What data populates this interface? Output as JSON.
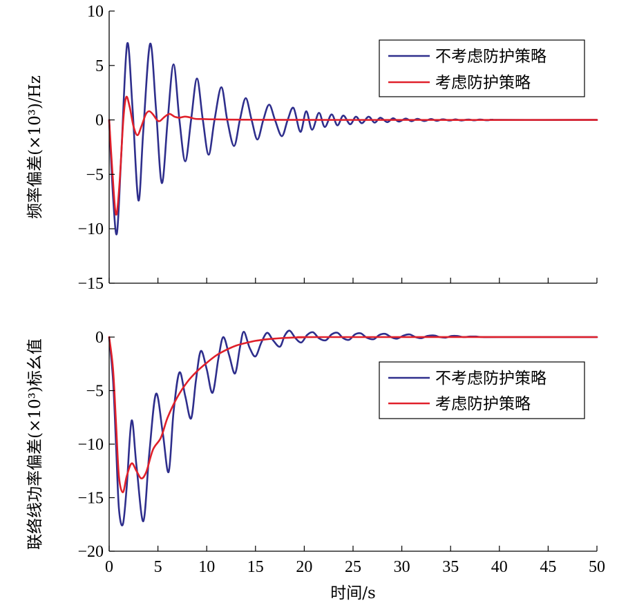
{
  "chart_data": [
    {
      "type": "line",
      "ylabel": "频率偏差(×10³)/Hz",
      "xlim": [
        0,
        50
      ],
      "ylim": [
        -15,
        10
      ],
      "x_ticks": [
        0,
        5,
        10,
        15,
        20,
        25,
        30,
        35,
        40,
        45,
        50
      ],
      "y_ticks": [
        -15,
        -10,
        -5,
        0,
        5,
        10
      ],
      "y_tick_labels": [
        "−15",
        "−10",
        "−5",
        "0",
        "5",
        "10"
      ],
      "legend_position": "top-right",
      "series": [
        {
          "name": "不考虑防护策略",
          "color": "#2e2e8c",
          "points": [
            [
              0,
              0
            ],
            [
              0.4,
              -7
            ],
            [
              0.8,
              -10.4
            ],
            [
              1.25,
              -3
            ],
            [
              1.85,
              7
            ],
            [
              2.4,
              1
            ],
            [
              3.0,
              -7.4
            ],
            [
              3.5,
              -1
            ],
            [
              4.2,
              7
            ],
            [
              4.8,
              1
            ],
            [
              5.4,
              -5.8
            ],
            [
              6.0,
              0
            ],
            [
              6.6,
              5.1
            ],
            [
              7.2,
              0
            ],
            [
              7.8,
              -3.8
            ],
            [
              8.4,
              0
            ],
            [
              9.0,
              3.8
            ],
            [
              9.6,
              0
            ],
            [
              10.2,
              -3.2
            ],
            [
              10.8,
              0
            ],
            [
              11.5,
              3.0
            ],
            [
              12.1,
              0
            ],
            [
              12.8,
              -2.4
            ],
            [
              13.4,
              0
            ],
            [
              14.0,
              2.0
            ],
            [
              14.6,
              0
            ],
            [
              15.2,
              -1.8
            ],
            [
              15.8,
              0
            ],
            [
              16.4,
              1.4
            ],
            [
              17.0,
              0
            ],
            [
              17.7,
              -1.5
            ],
            [
              18.3,
              0
            ],
            [
              18.9,
              1.1
            ],
            [
              19.6,
              -1.1
            ],
            [
              20.2,
              0.8
            ],
            [
              20.8,
              -0.9
            ],
            [
              21.5,
              0.65
            ],
            [
              22.1,
              -0.65
            ],
            [
              22.8,
              0.5
            ],
            [
              23.4,
              -0.5
            ],
            [
              24.0,
              0.4
            ],
            [
              24.7,
              -0.4
            ],
            [
              25.3,
              0.3
            ],
            [
              25.9,
              -0.3
            ],
            [
              26.6,
              0.3
            ],
            [
              27.2,
              -0.25
            ],
            [
              27.8,
              0.2
            ],
            [
              28.5,
              -0.2
            ],
            [
              29.1,
              0.15
            ],
            [
              29.7,
              -0.15
            ],
            [
              30.4,
              0.12
            ],
            [
              31.0,
              -0.12
            ],
            [
              31.6,
              0.1
            ],
            [
              32.3,
              -0.1
            ],
            [
              33.0,
              0.08
            ],
            [
              33.6,
              -0.08
            ],
            [
              34.2,
              0.06
            ],
            [
              34.9,
              -0.06
            ],
            [
              35.5,
              0.05
            ],
            [
              36.1,
              -0.05
            ],
            [
              36.8,
              0.04
            ],
            [
              37.4,
              -0.04
            ],
            [
              38.0,
              0.03
            ],
            [
              38.7,
              -0.03
            ],
            [
              39.3,
              0.02
            ],
            [
              40.0,
              0
            ],
            [
              50,
              0
            ]
          ]
        },
        {
          "name": "考虑防护策略",
          "color": "#e0202a",
          "points": [
            [
              0,
              0
            ],
            [
              0.35,
              -5
            ],
            [
              0.7,
              -8.7
            ],
            [
              1.05,
              -6
            ],
            [
              1.45,
              0
            ],
            [
              1.75,
              2.1
            ],
            [
              2.1,
              1.2
            ],
            [
              2.5,
              -0.6
            ],
            [
              2.9,
              -1.4
            ],
            [
              3.3,
              -0.6
            ],
            [
              3.75,
              0.5
            ],
            [
              4.1,
              0.8
            ],
            [
              4.5,
              0.5
            ],
            [
              4.9,
              0
            ],
            [
              5.2,
              -0.1
            ],
            [
              5.7,
              0.3
            ],
            [
              6.2,
              0.55
            ],
            [
              6.7,
              0.3
            ],
            [
              7.2,
              0.2
            ],
            [
              7.7,
              0.3
            ],
            [
              8.2,
              0.25
            ],
            [
              8.8,
              0.1
            ],
            [
              9.5,
              0.08
            ],
            [
              11,
              0.05
            ],
            [
              14,
              0.02
            ],
            [
              20,
              0
            ],
            [
              50,
              0
            ]
          ]
        }
      ]
    },
    {
      "type": "line",
      "ylabel": "联络线功率偏差(×10³)标幺值",
      "xlabel": "时间/s",
      "xlim": [
        0,
        50
      ],
      "ylim": [
        -20,
        0
      ],
      "x_ticks": [
        0,
        5,
        10,
        15,
        20,
        25,
        30,
        35,
        40,
        45,
        50
      ],
      "x_tick_labels": [
        "0",
        "5",
        "10",
        "15",
        "20",
        "25",
        "30",
        "35",
        "40",
        "45",
        "50"
      ],
      "y_ticks": [
        -20,
        -15,
        -10,
        -5,
        0
      ],
      "y_tick_labels": [
        "−20",
        "−15",
        "−10",
        "−5",
        "0"
      ],
      "legend_position": "right",
      "series": [
        {
          "name": "不考虑防护策略",
          "color": "#2e2e8c",
          "points": [
            [
              0,
              0
            ],
            [
              0.4,
              -4
            ],
            [
              0.7,
              -10
            ],
            [
              1.0,
              -16
            ],
            [
              1.4,
              -17.5
            ],
            [
              1.8,
              -14
            ],
            [
              2.3,
              -7.8
            ],
            [
              2.8,
              -12
            ],
            [
              3.5,
              -17.2
            ],
            [
              4.1,
              -11
            ],
            [
              4.8,
              -5.3
            ],
            [
              5.5,
              -9
            ],
            [
              6.1,
              -12.6
            ],
            [
              6.6,
              -7
            ],
            [
              7.2,
              -3.3
            ],
            [
              7.8,
              -5.5
            ],
            [
              8.4,
              -7.6
            ],
            [
              8.9,
              -4
            ],
            [
              9.4,
              -1.3
            ],
            [
              10.0,
              -3
            ],
            [
              10.6,
              -5.2
            ],
            [
              11.2,
              -2
            ],
            [
              11.7,
              0
            ],
            [
              12.3,
              -1.7
            ],
            [
              12.9,
              -3.4
            ],
            [
              13.4,
              -1
            ],
            [
              13.8,
              0.5
            ],
            [
              14.4,
              -1
            ],
            [
              15.0,
              -1.8
            ],
            [
              15.6,
              -0.5
            ],
            [
              16.2,
              0.4
            ],
            [
              16.8,
              -0.3
            ],
            [
              17.5,
              -0.9
            ],
            [
              18.0,
              0.15
            ],
            [
              18.5,
              0.6
            ],
            [
              19.1,
              -0.1
            ],
            [
              19.7,
              -0.5
            ],
            [
              20.3,
              0.2
            ],
            [
              20.9,
              0.45
            ],
            [
              21.5,
              -0.1
            ],
            [
              22.2,
              -0.3
            ],
            [
              22.8,
              0.25
            ],
            [
              23.4,
              0.4
            ],
            [
              24.0,
              -0.1
            ],
            [
              24.6,
              -0.25
            ],
            [
              25.2,
              0.25
            ],
            [
              25.8,
              0.35
            ],
            [
              26.4,
              -0.05
            ],
            [
              27.1,
              -0.2
            ],
            [
              27.7,
              0.2
            ],
            [
              28.3,
              0.3
            ],
            [
              28.9,
              0
            ],
            [
              29.5,
              -0.15
            ],
            [
              30.2,
              0.15
            ],
            [
              30.8,
              0.25
            ],
            [
              31.4,
              0
            ],
            [
              32.0,
              -0.1
            ],
            [
              32.6,
              0.1
            ],
            [
              33.3,
              0.15
            ],
            [
              33.9,
              0
            ],
            [
              34.5,
              -0.05
            ],
            [
              35.1,
              0.1
            ],
            [
              35.7,
              0.1
            ],
            [
              36.3,
              0
            ],
            [
              37.0,
              0.05
            ],
            [
              37.6,
              0.05
            ],
            [
              38.3,
              0
            ],
            [
              40,
              0
            ],
            [
              50,
              0
            ]
          ]
        },
        {
          "name": "考虑防护策略",
          "color": "#e0202a",
          "points": [
            [
              0,
              0
            ],
            [
              0.4,
              -3
            ],
            [
              0.7,
              -8
            ],
            [
              1.0,
              -13
            ],
            [
              1.4,
              -14.5
            ],
            [
              1.8,
              -13
            ],
            [
              2.3,
              -11.8
            ],
            [
              2.8,
              -12.5
            ],
            [
              3.3,
              -13.2
            ],
            [
              3.8,
              -12.6
            ],
            [
              4.5,
              -10.5
            ],
            [
              5.3,
              -9.4
            ],
            [
              6.0,
              -7.5
            ],
            [
              7.0,
              -5.6
            ],
            [
              8.0,
              -4.2
            ],
            [
              9.0,
              -3.2
            ],
            [
              10.0,
              -2.4
            ],
            [
              11.0,
              -1.7
            ],
            [
              12.0,
              -1.2
            ],
            [
              13.0,
              -0.8
            ],
            [
              14.0,
              -0.55
            ],
            [
              15.0,
              -0.35
            ],
            [
              16.0,
              -0.22
            ],
            [
              17.0,
              -0.14
            ],
            [
              18.0,
              -0.08
            ],
            [
              19.0,
              -0.04
            ],
            [
              20.0,
              -0.02
            ],
            [
              22.0,
              0
            ],
            [
              50,
              0
            ]
          ]
        }
      ]
    }
  ],
  "xlabel": "时间/s",
  "legend": {
    "top": [
      "不考虑防护策略",
      "考虑防护策略"
    ],
    "bottom": [
      "不考虑防护策略",
      "考虑防护策略"
    ]
  }
}
